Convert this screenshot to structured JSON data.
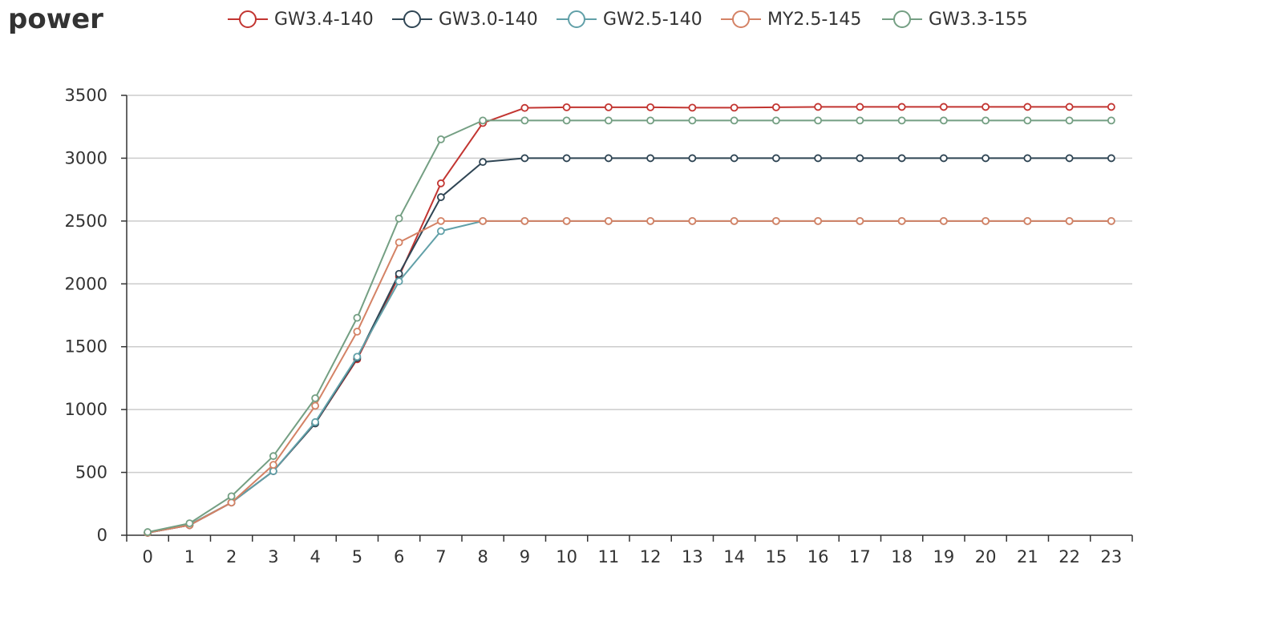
{
  "chart_data": {
    "type": "line",
    "title": "power",
    "xlabel": "",
    "ylabel": "",
    "categories": [
      "0",
      "1",
      "2",
      "3",
      "4",
      "5",
      "6",
      "7",
      "8",
      "9",
      "10",
      "11",
      "12",
      "13",
      "14",
      "15",
      "16",
      "17",
      "18",
      "19",
      "20",
      "21",
      "22",
      "23"
    ],
    "ylim": [
      0,
      3500
    ],
    "yticks": [
      0,
      500,
      1000,
      1500,
      2000,
      2500,
      3000,
      3500
    ],
    "grid": true,
    "legend_position": "top",
    "series": [
      {
        "name": "GW3.4-140",
        "color": "#c23531",
        "values": [
          20,
          80,
          260,
          510,
          890,
          1400,
          2060,
          2800,
          3280,
          3400,
          3405,
          3405,
          3405,
          3402,
          3402,
          3405,
          3408,
          3408,
          3408,
          3408,
          3408,
          3408,
          3408,
          3408
        ]
      },
      {
        "name": "GW3.0-140",
        "color": "#2f4554",
        "values": [
          20,
          80,
          260,
          510,
          890,
          1410,
          2080,
          2690,
          2970,
          3000,
          3000,
          3000,
          3000,
          3000,
          3000,
          3000,
          3000,
          3000,
          3000,
          3000,
          3000,
          3000,
          3000,
          3000
        ]
      },
      {
        "name": "GW2.5-140",
        "color": "#61a0a8",
        "values": [
          20,
          85,
          260,
          510,
          900,
          1420,
          2020,
          2420,
          2500,
          2500,
          2500,
          2500,
          2500,
          2500,
          2500,
          2500,
          2500,
          2500,
          2500,
          2500,
          2500,
          2500,
          2500,
          2500
        ]
      },
      {
        "name": "MY2.5-145",
        "color": "#d48265",
        "values": [
          20,
          80,
          260,
          560,
          1030,
          1620,
          2330,
          2500,
          2500,
          2500,
          2500,
          2500,
          2500,
          2500,
          2500,
          2500,
          2500,
          2500,
          2500,
          2500,
          2500,
          2500,
          2500,
          2500
        ]
      },
      {
        "name": "GW3.3-155",
        "color": "#749f83",
        "values": [
          25,
          95,
          310,
          630,
          1090,
          1730,
          2520,
          3150,
          3300,
          3300,
          3300,
          3300,
          3300,
          3300,
          3300,
          3300,
          3300,
          3300,
          3300,
          3300,
          3300,
          3300,
          3300,
          3300
        ]
      }
    ]
  }
}
